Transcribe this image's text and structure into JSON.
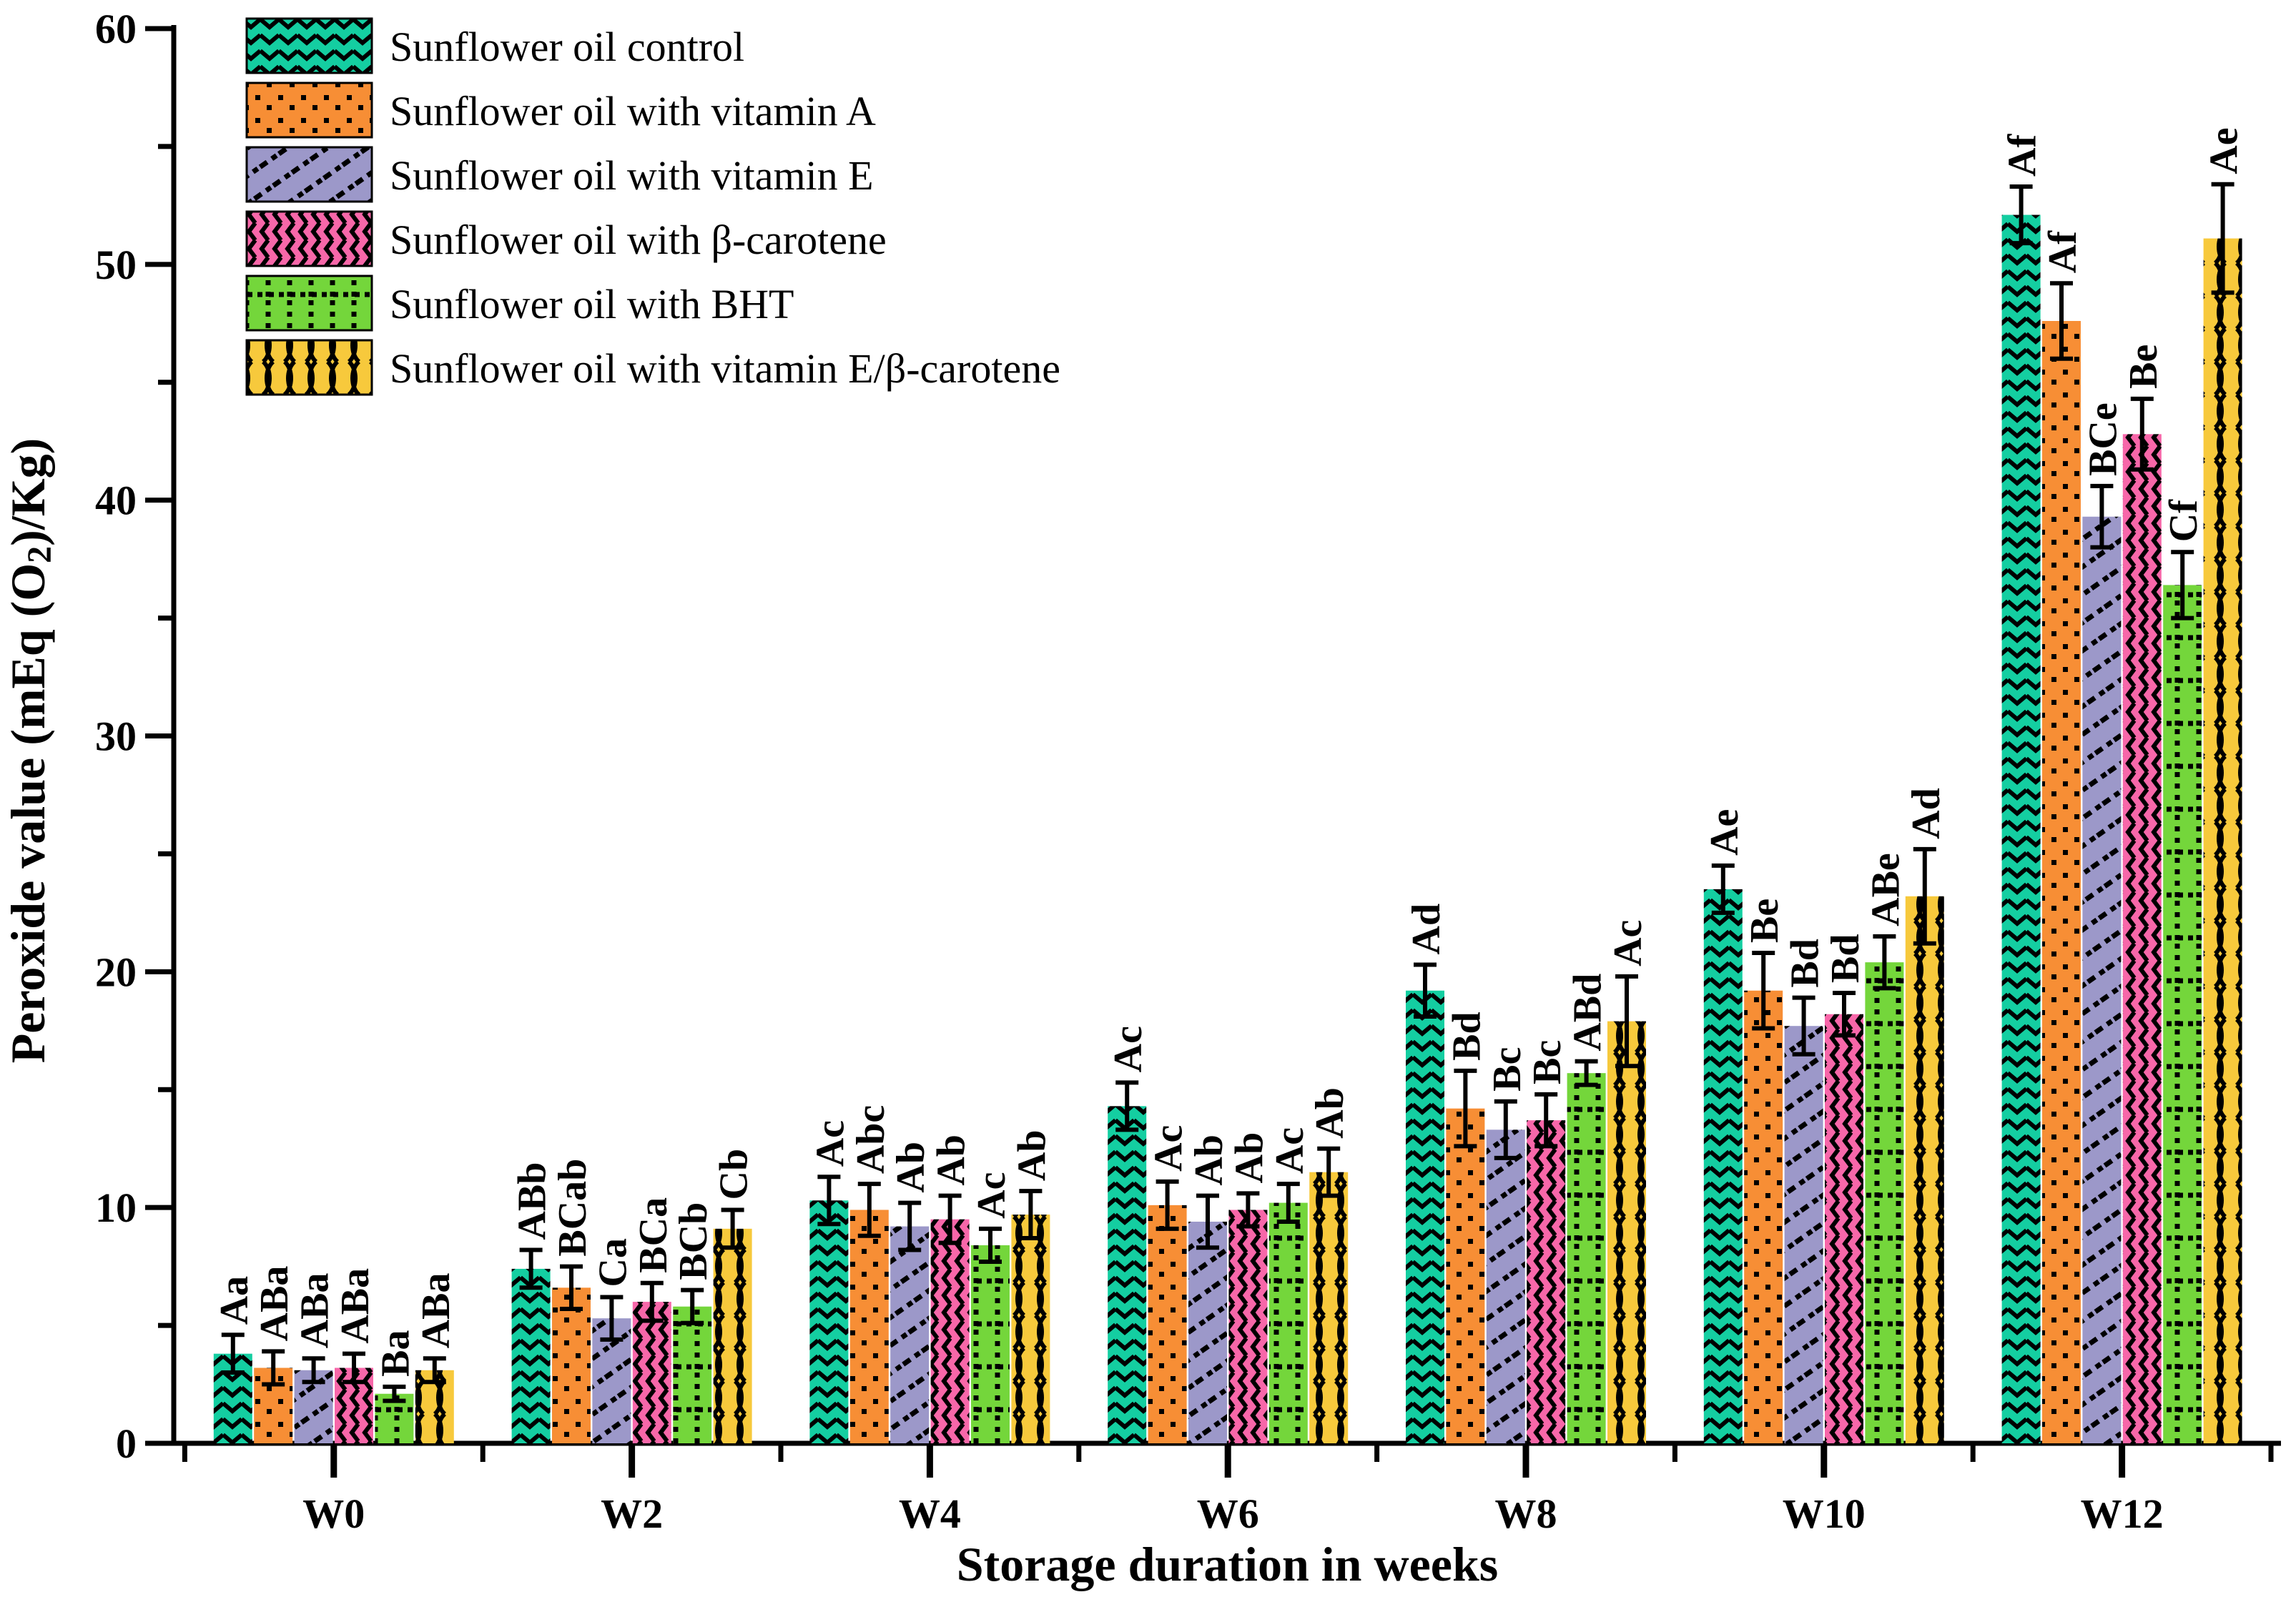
{
  "chart_data": {
    "type": "bar",
    "title": "",
    "xlabel": "Storage duration in weeks",
    "ylabel": "Peroxide value (mEq (O₂)/Kg)",
    "ylabel_parts": {
      "pre": "Peroxide value (mEq (O",
      "sub": "2",
      "post": ")/Kg)"
    },
    "ylim": [
      0,
      60
    ],
    "yticks": [
      0,
      10,
      20,
      30,
      40,
      50,
      60
    ],
    "yticks_minor": [
      5,
      15,
      25,
      35,
      45,
      55
    ],
    "grid": false,
    "legend_position": "top-left",
    "categories": [
      "W0",
      "W2",
      "W4",
      "W6",
      "W8",
      "W10",
      "W12"
    ],
    "series": [
      {
        "name": "Sunflower oil control",
        "color": "#14CEA1",
        "pattern": "chevron",
        "values": [
          3.8,
          7.4,
          10.3,
          14.3,
          19.2,
          23.5,
          52.1
        ],
        "errors": [
          0.8,
          0.8,
          1.0,
          1.0,
          1.1,
          1.0,
          1.2
        ],
        "sig_labels": [
          "Aa",
          "ABb",
          "Ac",
          "Ac",
          "Ad",
          "Ae",
          "Af"
        ]
      },
      {
        "name": "Sunflower oil with vitamin A",
        "color": "#F78E35",
        "pattern": "dots",
        "values": [
          3.2,
          6.6,
          9.9,
          10.1,
          14.2,
          19.2,
          47.6
        ],
        "errors": [
          0.7,
          0.9,
          1.1,
          1.0,
          1.6,
          1.6,
          1.6
        ],
        "sig_labels": [
          "ABa",
          "BCab",
          "Abc",
          "Ac",
          "Bd",
          "Be",
          "Af"
        ]
      },
      {
        "name": "Sunflower oil with vitamin E",
        "color": "#9C98C9",
        "pattern": "diagonal",
        "values": [
          3.1,
          5.3,
          9.2,
          9.4,
          13.3,
          17.7,
          39.3
        ],
        "errors": [
          0.5,
          0.9,
          1.0,
          1.1,
          1.2,
          1.2,
          1.3
        ],
        "sig_labels": [
          "ABa",
          "Ca",
          "Ab",
          "Ab",
          "Bc",
          "Bd",
          "BCe"
        ]
      },
      {
        "name": "Sunflower oil with β-carotene",
        "color": "#F767A9",
        "pattern": "herringbone",
        "values": [
          3.2,
          6.0,
          9.5,
          9.9,
          13.7,
          18.2,
          42.8
        ],
        "errors": [
          0.6,
          0.8,
          1.0,
          0.7,
          1.1,
          0.9,
          1.5
        ],
        "sig_labels": [
          "ABa",
          "BCa",
          "Ab",
          "Ab",
          "Bc",
          "Bd",
          "Be"
        ]
      },
      {
        "name": "Sunflower oil with BHT",
        "color": "#74D63B",
        "pattern": "griddots",
        "values": [
          2.1,
          5.8,
          8.4,
          10.2,
          15.7,
          20.4,
          36.4
        ],
        "errors": [
          0.3,
          0.7,
          0.7,
          0.8,
          0.5,
          1.1,
          1.4
        ],
        "sig_labels": [
          "Ba",
          "BCb",
          "Ac",
          "Ac",
          "ABd",
          "ABe",
          "Cf"
        ]
      },
      {
        "name": "Sunflower oil with vitamin E/β-carotene",
        "color": "#F7C93C",
        "pattern": "weave",
        "values": [
          3.1,
          9.1,
          9.7,
          11.5,
          17.9,
          23.2,
          51.1
        ],
        "errors": [
          0.5,
          0.8,
          1.0,
          1.0,
          1.9,
          2.0,
          2.3
        ],
        "sig_labels": [
          "ABa",
          "Cb",
          "Ab",
          "Ab",
          "Ac",
          "Ad",
          "Ae"
        ]
      }
    ]
  }
}
